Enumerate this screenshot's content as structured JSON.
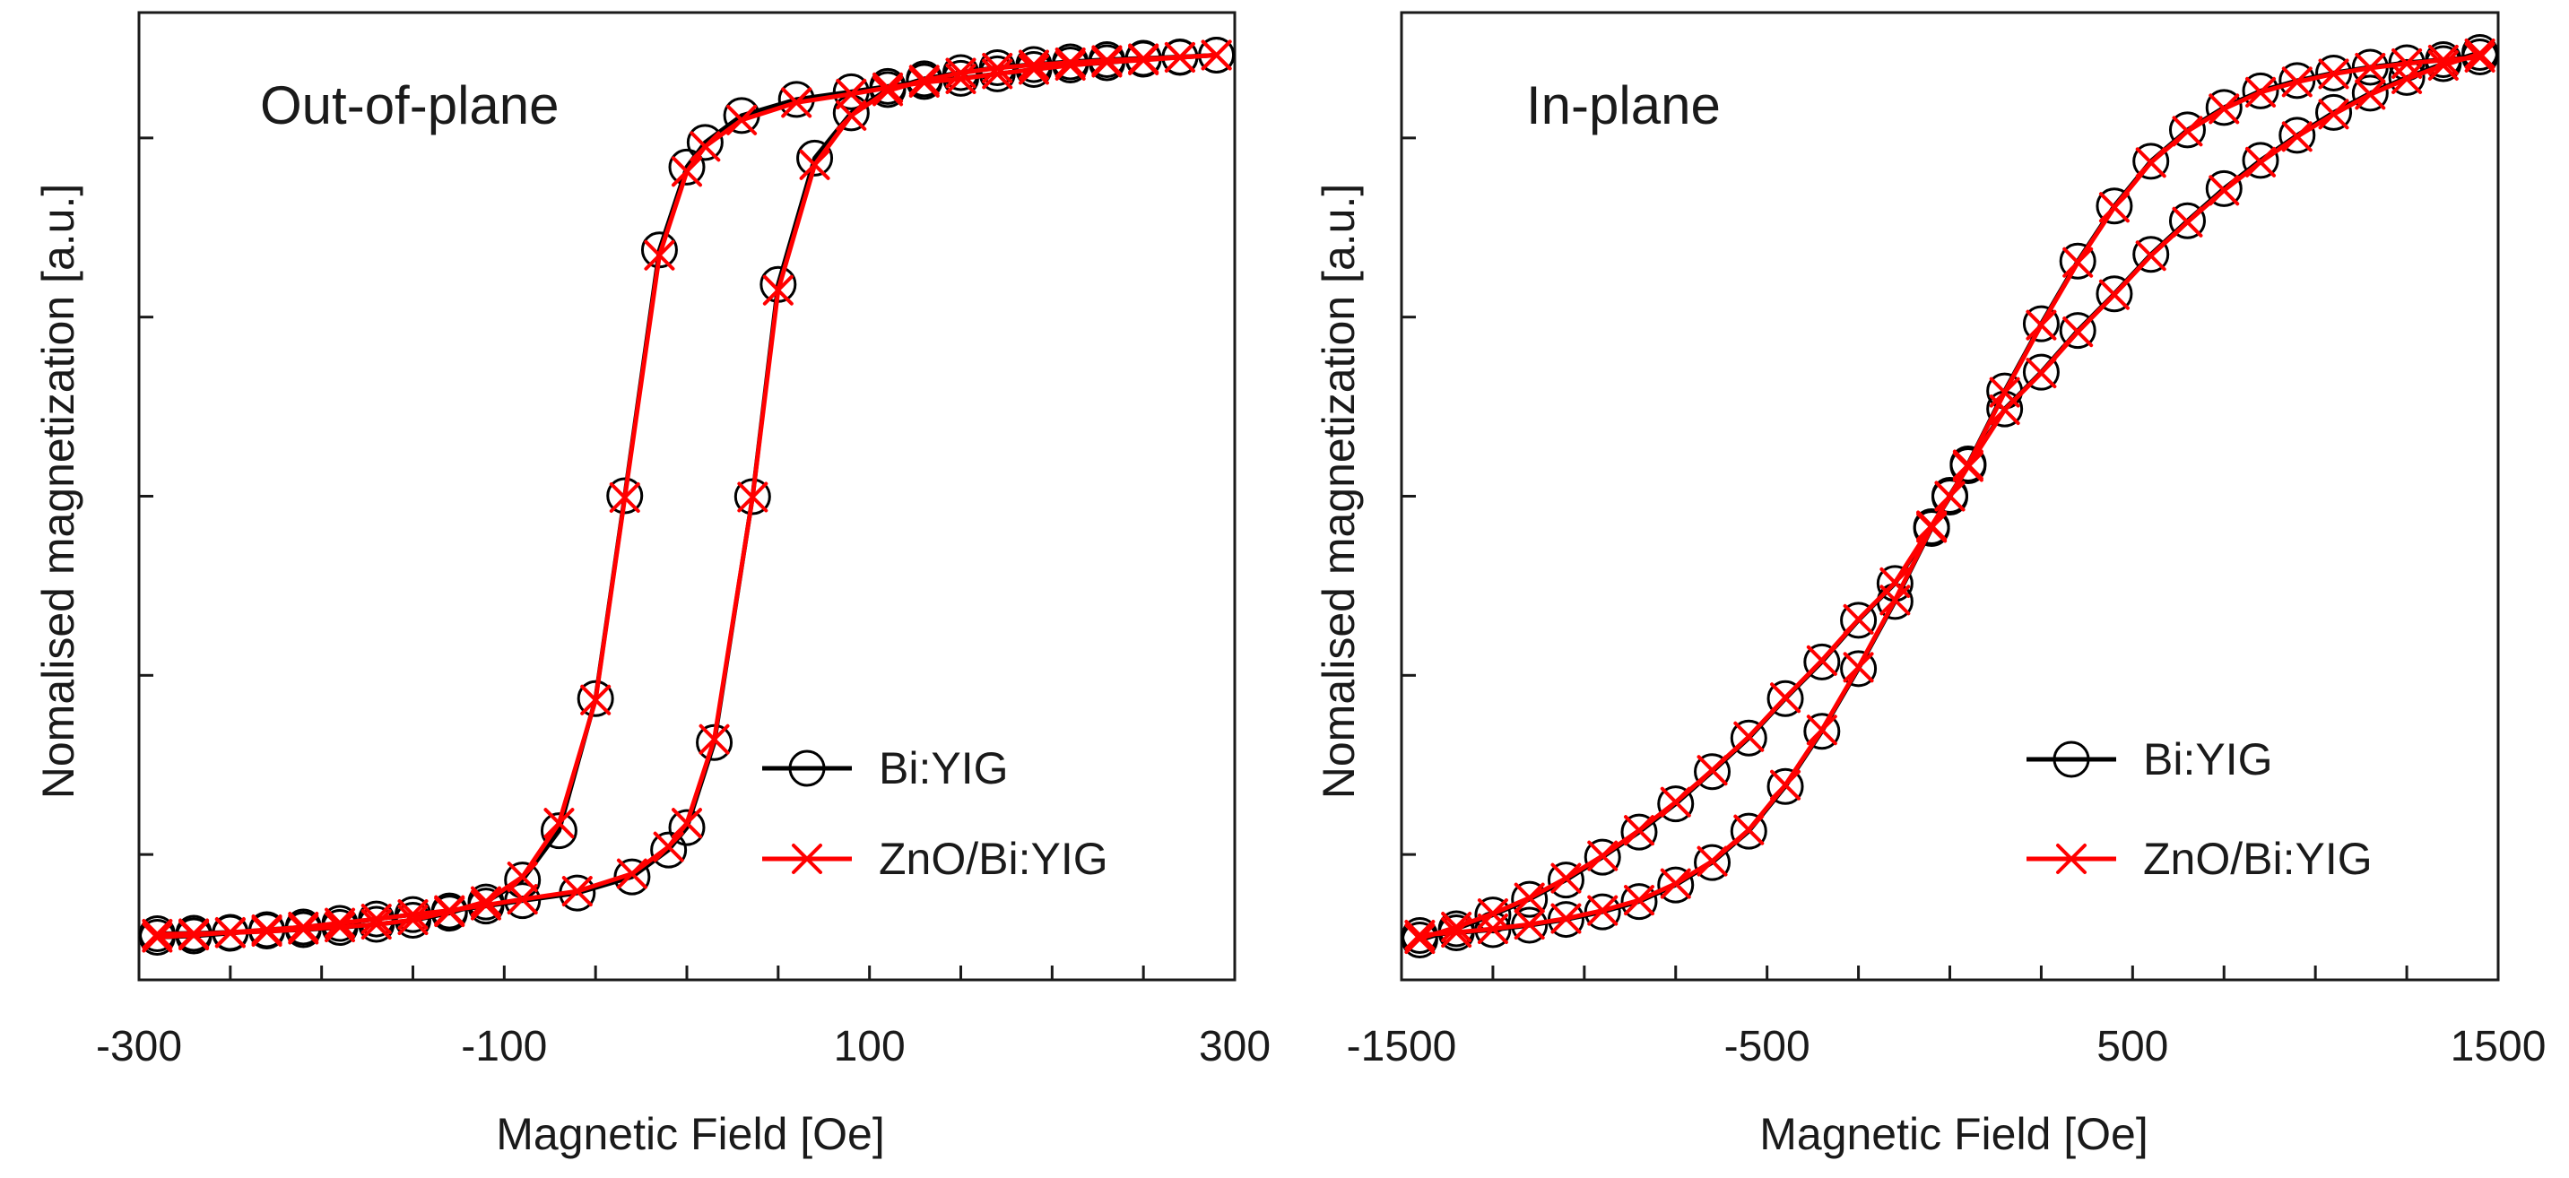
{
  "chart_data": [
    {
      "type": "line",
      "title": "Out-of-plane",
      "xlabel": "Magnetic Field [Oe]",
      "ylabel": "Nomalised magnetization [a.u.]",
      "xlim": [
        -300,
        300
      ],
      "ylim": [
        -1.08,
        1.08
      ],
      "x_tick_labels": [
        "-300",
        "-100",
        "100",
        "300"
      ],
      "x_tick_values": [
        -300,
        -100,
        100,
        300
      ],
      "x_minor_step": 50,
      "y_ticks": [
        -0.8,
        -0.4,
        0.0,
        0.4,
        0.8
      ],
      "y_tick_labels_shown": false,
      "grid": false,
      "legend_position": "bottom-right",
      "series": [
        {
          "name": "Bi:YIG",
          "color": "#000000",
          "marker": "open-circle",
          "branches": [
            {
              "x": [
                -290,
                -270,
                -250,
                -230,
                -210,
                -190,
                -170,
                -150,
                -130,
                -110,
                -90,
                -70,
                -50,
                -34,
                -15,
                0,
                10,
                30,
                60,
                90,
                110,
                130,
                150,
                170,
                190,
                210,
                230,
                250,
                270,
                290
              ],
              "y": [
                -0.977,
                -0.976,
                -0.974,
                -0.971,
                -0.968,
                -0.963,
                -0.956,
                -0.947,
                -0.931,
                -0.906,
                -0.857,
                -0.747,
                -0.452,
                0.001,
                0.55,
                0.735,
                0.79,
                0.85,
                0.886,
                0.903,
                0.915,
                0.926,
                0.933,
                0.943,
                0.953,
                0.963,
                0.968,
                0.976,
                0.98,
                0.985
              ]
            },
            {
              "x": [
                290,
                270,
                250,
                230,
                210,
                190,
                170,
                150,
                130,
                110,
                90,
                70,
                50,
                36,
                15,
                0,
                -10,
                -30,
                -60,
                -90,
                -110,
                -130,
                -150,
                -170,
                -190,
                -210,
                -230,
                -250,
                -270,
                -290
              ],
              "y": [
                0.985,
                0.981,
                0.978,
                0.975,
                0.97,
                0.964,
                0.957,
                0.946,
                0.932,
                0.908,
                0.856,
                0.755,
                0.473,
                -0.001,
                -0.55,
                -0.74,
                -0.79,
                -0.85,
                -0.886,
                -0.903,
                -0.915,
                -0.926,
                -0.934,
                -0.944,
                -0.954,
                -0.962,
                -0.968,
                -0.976,
                -0.982,
                -0.985
              ]
            }
          ]
        },
        {
          "name": "ZnO/Bi:YIG",
          "color": "#ff0000",
          "marker": "x",
          "branches": [
            {
              "x": [
                -290,
                -270,
                -250,
                -230,
                -210,
                -190,
                -170,
                -150,
                -130,
                -110,
                -90,
                -70,
                -50,
                -34,
                -15,
                0,
                10,
                30,
                60,
                90,
                110,
                130,
                150,
                170,
                190,
                210,
                230,
                250,
                270,
                290
              ],
              "y": [
                -0.978,
                -0.977,
                -0.975,
                -0.972,
                -0.967,
                -0.962,
                -0.956,
                -0.946,
                -0.928,
                -0.905,
                -0.85,
                -0.73,
                -0.455,
                -0.003,
                0.538,
                0.725,
                0.781,
                0.84,
                0.879,
                0.898,
                0.912,
                0.924,
                0.932,
                0.943,
                0.953,
                0.962,
                0.969,
                0.974,
                0.98,
                0.985
              ]
            },
            {
              "x": [
                290,
                270,
                250,
                230,
                210,
                190,
                170,
                150,
                130,
                110,
                90,
                70,
                50,
                36,
                15,
                0,
                -10,
                -30,
                -60,
                -90,
                -110,
                -130,
                -150,
                -170,
                -190,
                -210,
                -230,
                -250,
                -270,
                -290
              ],
              "y": [
                0.985,
                0.98,
                0.977,
                0.973,
                0.968,
                0.963,
                0.956,
                0.945,
                0.929,
                0.905,
                0.85,
                0.74,
                0.46,
                -0.002,
                -0.543,
                -0.73,
                -0.783,
                -0.843,
                -0.882,
                -0.9,
                -0.913,
                -0.925,
                -0.934,
                -0.944,
                -0.953,
                -0.962,
                -0.968,
                -0.974,
                -0.98,
                -0.985
              ]
            }
          ]
        }
      ]
    },
    {
      "type": "line",
      "title": "In-plane",
      "xlabel": "Magnetic Field [Oe]",
      "ylabel": "Nomalised magnetization [a.u.]",
      "xlim": [
        -1500,
        1500
      ],
      "ylim": [
        -1.08,
        1.08
      ],
      "x_tick_labels": [
        "-1500",
        "-500",
        "500",
        "1500"
      ],
      "x_tick_values": [
        -1500,
        -500,
        500,
        1500
      ],
      "x_minor_step": 250,
      "y_ticks": [
        -0.8,
        -0.4,
        0.0,
        0.4,
        0.8
      ],
      "y_tick_labels_shown": false,
      "grid": false,
      "legend_position": "bottom-right",
      "series": [
        {
          "name": "Bi:YIG",
          "color": "#000000",
          "marker": "open-circle",
          "branches": [
            {
              "x": [
                -1450,
                -1350,
                -1250,
                -1150,
                -1050,
                -950,
                -850,
                -750,
                -650,
                -550,
                -450,
                -350,
                -250,
                -150,
                -50,
                0,
                50,
                150,
                250,
                350,
                450,
                550,
                650,
                750,
                850,
                950,
                1050,
                1150,
                1250,
                1350,
                1450
              ],
              "y": [
                -0.991,
                -0.966,
                -0.935,
                -0.9,
                -0.857,
                -0.806,
                -0.75,
                -0.687,
                -0.615,
                -0.54,
                -0.452,
                -0.37,
                -0.277,
                -0.195,
                -0.068,
                -0.002,
                0.072,
                0.235,
                0.385,
                0.525,
                0.648,
                0.748,
                0.818,
                0.868,
                0.905,
                0.928,
                0.945,
                0.958,
                0.968,
                0.975,
                0.981
              ]
            },
            {
              "x": [
                1450,
                1350,
                1250,
                1150,
                1050,
                950,
                850,
                750,
                650,
                550,
                450,
                350,
                250,
                150,
                50,
                0,
                -50,
                -150,
                -250,
                -350,
                -450,
                -550,
                -650,
                -750,
                -850,
                -950,
                -1050,
                -1150,
                -1250,
                -1350,
                -1450
              ],
              "y": [
                0.991,
                0.966,
                0.935,
                0.9,
                0.857,
                0.806,
                0.75,
                0.687,
                0.615,
                0.54,
                0.452,
                0.37,
                0.277,
                0.195,
                0.068,
                0.002,
                -0.072,
                -0.235,
                -0.385,
                -0.525,
                -0.648,
                -0.748,
                -0.818,
                -0.868,
                -0.905,
                -0.928,
                -0.945,
                -0.958,
                -0.968,
                -0.975,
                -0.981
              ]
            }
          ]
        },
        {
          "name": "ZnO/Bi:YIG",
          "color": "#ff0000",
          "marker": "x",
          "branches": [
            {
              "x": [
                -1450,
                -1350,
                -1250,
                -1150,
                -1050,
                -950,
                -850,
                -750,
                -650,
                -550,
                -450,
                -350,
                -250,
                -150,
                -50,
                0,
                50,
                150,
                250,
                350,
                450,
                550,
                650,
                750,
                850,
                950,
                1050,
                1150,
                1250,
                1350,
                1450
              ],
              "y": [
                -0.988,
                -0.962,
                -0.932,
                -0.897,
                -0.853,
                -0.803,
                -0.746,
                -0.683,
                -0.612,
                -0.537,
                -0.45,
                -0.367,
                -0.275,
                -0.193,
                -0.066,
                0.0,
                0.07,
                0.232,
                0.382,
                0.522,
                0.645,
                0.745,
                0.815,
                0.865,
                0.902,
                0.925,
                0.943,
                0.956,
                0.966,
                0.974,
                0.98
              ]
            },
            {
              "x": [
                1450,
                1350,
                1250,
                1150,
                1050,
                950,
                850,
                750,
                650,
                550,
                450,
                350,
                250,
                150,
                50,
                0,
                -50,
                -150,
                -250,
                -350,
                -450,
                -550,
                -650,
                -750,
                -850,
                -950,
                -1050,
                -1150,
                -1250,
                -1350,
                -1450
              ],
              "y": [
                0.988,
                0.962,
                0.932,
                0.897,
                0.853,
                0.803,
                0.746,
                0.683,
                0.612,
                0.537,
                0.45,
                0.367,
                0.275,
                0.193,
                0.066,
                0.0,
                -0.07,
                -0.232,
                -0.382,
                -0.522,
                -0.645,
                -0.745,
                -0.815,
                -0.865,
                -0.902,
                -0.925,
                -0.943,
                -0.956,
                -0.966,
                -0.974,
                -0.98
              ]
            }
          ]
        }
      ]
    }
  ]
}
